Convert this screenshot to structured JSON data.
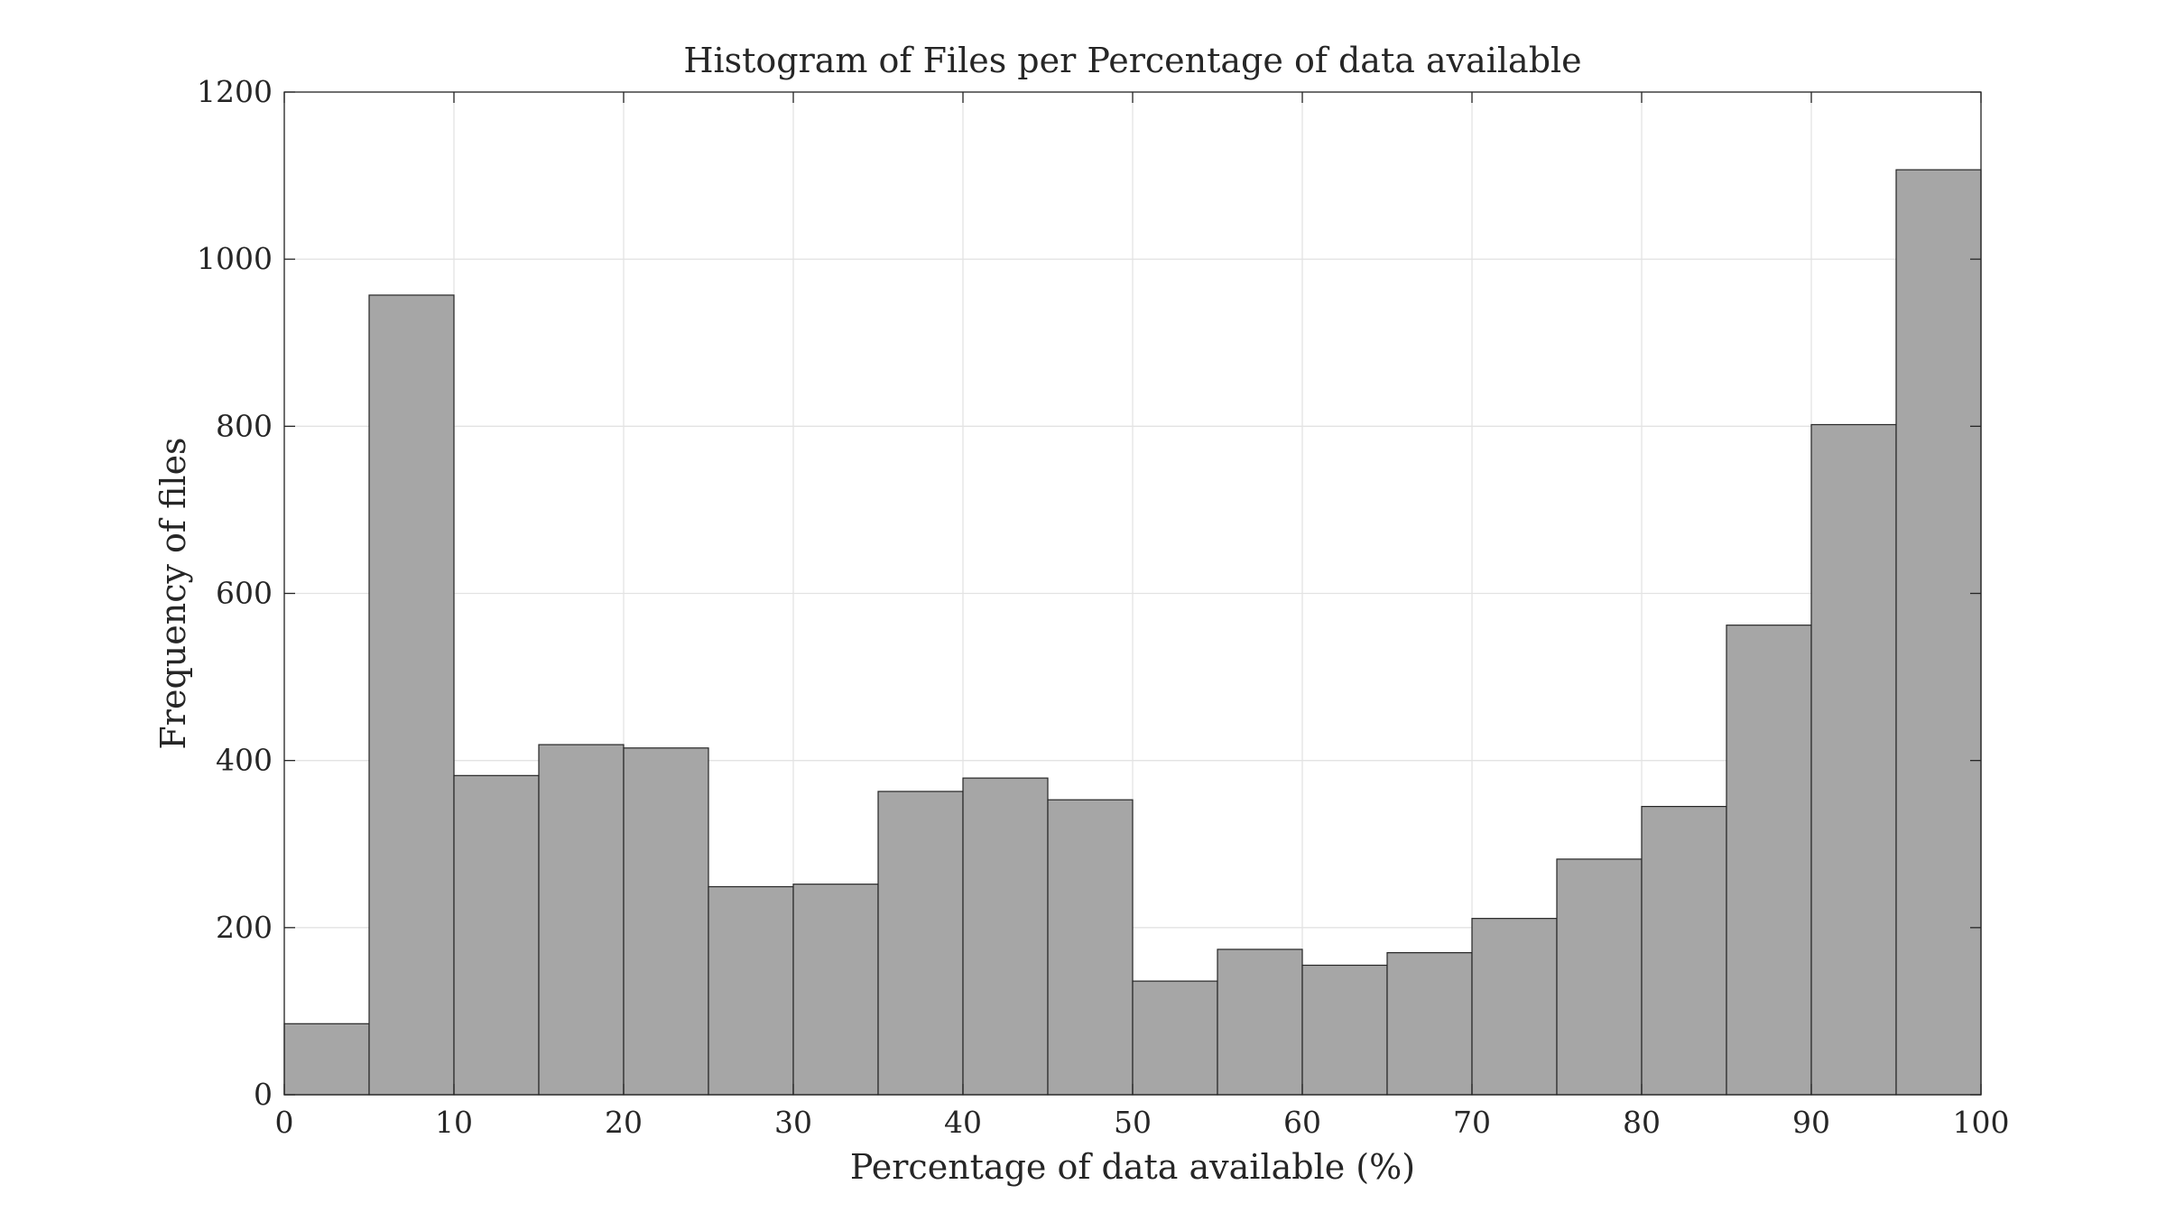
{
  "chart_data": {
    "type": "bar",
    "title": "Histogram of Files per Percentage of data available",
    "xlabel": "Percentage of data available (%)",
    "ylabel": "Frequency of files",
    "xlim": [
      0,
      100
    ],
    "ylim": [
      0,
      1200
    ],
    "bin_width": 5,
    "bin_edges": [
      0,
      5,
      10,
      15,
      20,
      25,
      30,
      35,
      40,
      45,
      50,
      55,
      60,
      65,
      70,
      75,
      80,
      85,
      90,
      95,
      100
    ],
    "values": [
      85,
      957,
      382,
      419,
      415,
      249,
      252,
      363,
      379,
      353,
      136,
      174,
      155,
      170,
      211,
      282,
      345,
      562,
      802,
      1107
    ],
    "xticks": [
      "0",
      "10",
      "20",
      "30",
      "40",
      "50",
      "60",
      "70",
      "80",
      "90",
      "100"
    ],
    "yticks": [
      "0",
      "200",
      "400",
      "600",
      "800",
      "1000",
      "1200"
    ],
    "grid": true,
    "bar_color": "#a6a6a6",
    "edge_color": "#262626"
  }
}
